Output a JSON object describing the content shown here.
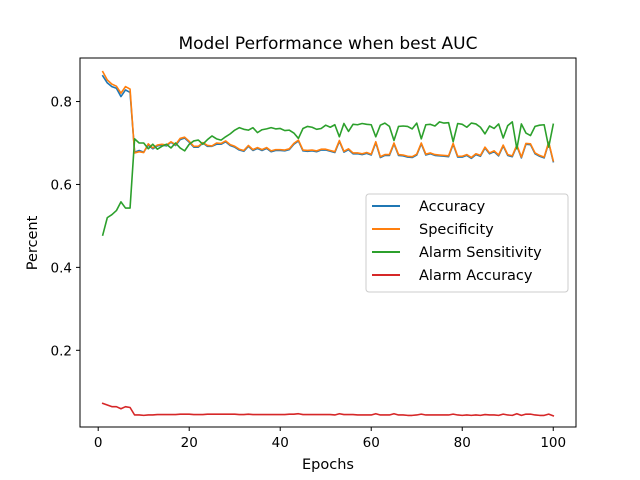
{
  "chart_data": {
    "type": "line",
    "title": "Model Performance when best AUC",
    "xlabel": "Epochs",
    "ylabel": "Percent",
    "xlim": [
      -4,
      105
    ],
    "ylim": [
      0.015,
      0.905
    ],
    "xticks": [
      0,
      20,
      40,
      60,
      80,
      100
    ],
    "yticks": [
      0.2,
      0.4,
      0.6,
      0.8
    ],
    "grid": false,
    "legend_position": "center-right",
    "x": [
      1,
      2,
      3,
      4,
      5,
      6,
      7,
      8,
      9,
      10,
      11,
      12,
      13,
      14,
      15,
      16,
      17,
      18,
      19,
      20,
      21,
      22,
      23,
      24,
      25,
      26,
      27,
      28,
      29,
      30,
      31,
      32,
      33,
      34,
      35,
      36,
      37,
      38,
      39,
      40,
      41,
      42,
      43,
      44,
      45,
      46,
      47,
      48,
      49,
      50,
      51,
      52,
      53,
      54,
      55,
      56,
      57,
      58,
      59,
      60,
      61,
      62,
      63,
      64,
      65,
      66,
      67,
      68,
      69,
      70,
      71,
      72,
      73,
      74,
      75,
      76,
      77,
      78,
      79,
      80,
      81,
      82,
      83,
      84,
      85,
      86,
      87,
      88,
      89,
      90,
      91,
      92,
      93,
      94,
      95,
      96,
      97,
      98,
      99,
      100
    ],
    "series": [
      {
        "name": "Accuracy",
        "color": "#1f77b4",
        "values": [
          0.862,
          0.845,
          0.836,
          0.832,
          0.812,
          0.828,
          0.822,
          0.678,
          0.682,
          0.678,
          0.695,
          0.686,
          0.693,
          0.695,
          0.693,
          0.702,
          0.694,
          0.708,
          0.712,
          0.702,
          0.69,
          0.69,
          0.7,
          0.692,
          0.692,
          0.697,
          0.697,
          0.703,
          0.694,
          0.69,
          0.683,
          0.68,
          0.692,
          0.682,
          0.687,
          0.682,
          0.687,
          0.679,
          0.682,
          0.682,
          0.681,
          0.684,
          0.697,
          0.705,
          0.681,
          0.68,
          0.681,
          0.679,
          0.683,
          0.683,
          0.68,
          0.677,
          0.704,
          0.678,
          0.684,
          0.674,
          0.674,
          0.672,
          0.675,
          0.671,
          0.701,
          0.665,
          0.67,
          0.67,
          0.698,
          0.67,
          0.669,
          0.666,
          0.665,
          0.671,
          0.698,
          0.671,
          0.674,
          0.67,
          0.669,
          0.668,
          0.667,
          0.697,
          0.666,
          0.666,
          0.67,
          0.663,
          0.672,
          0.668,
          0.688,
          0.674,
          0.679,
          0.669,
          0.693,
          0.67,
          0.667,
          0.693,
          0.664,
          0.697,
          0.696,
          0.674,
          0.668,
          0.664,
          0.7,
          0.655
        ]
      },
      {
        "name": "Specificity",
        "color": "#ff7f0e",
        "values": [
          0.872,
          0.852,
          0.842,
          0.837,
          0.82,
          0.836,
          0.83,
          0.676,
          0.679,
          0.677,
          0.698,
          0.688,
          0.695,
          0.697,
          0.695,
          0.703,
          0.696,
          0.711,
          0.714,
          0.704,
          0.692,
          0.692,
          0.701,
          0.694,
          0.693,
          0.7,
          0.699,
          0.705,
          0.696,
          0.692,
          0.685,
          0.682,
          0.694,
          0.684,
          0.689,
          0.684,
          0.689,
          0.681,
          0.684,
          0.684,
          0.683,
          0.686,
          0.699,
          0.707,
          0.683,
          0.682,
          0.683,
          0.681,
          0.685,
          0.685,
          0.682,
          0.679,
          0.706,
          0.68,
          0.686,
          0.676,
          0.676,
          0.674,
          0.677,
          0.673,
          0.703,
          0.667,
          0.672,
          0.672,
          0.7,
          0.672,
          0.671,
          0.668,
          0.667,
          0.673,
          0.7,
          0.673,
          0.676,
          0.672,
          0.671,
          0.67,
          0.669,
          0.699,
          0.668,
          0.668,
          0.672,
          0.665,
          0.674,
          0.67,
          0.69,
          0.676,
          0.681,
          0.671,
          0.695,
          0.672,
          0.669,
          0.695,
          0.666,
          0.699,
          0.698,
          0.676,
          0.67,
          0.666,
          0.702,
          0.657
        ]
      },
      {
        "name": "Alarm Sensitivity",
        "color": "#2ca02c",
        "values": [
          0.478,
          0.52,
          0.527,
          0.537,
          0.558,
          0.543,
          0.543,
          0.71,
          0.7,
          0.7,
          0.686,
          0.697,
          0.685,
          0.692,
          0.697,
          0.688,
          0.7,
          0.688,
          0.681,
          0.697,
          0.705,
          0.707,
          0.697,
          0.708,
          0.717,
          0.71,
          0.707,
          0.715,
          0.722,
          0.731,
          0.737,
          0.733,
          0.731,
          0.737,
          0.725,
          0.732,
          0.734,
          0.737,
          0.734,
          0.735,
          0.73,
          0.731,
          0.724,
          0.711,
          0.735,
          0.74,
          0.738,
          0.733,
          0.735,
          0.743,
          0.738,
          0.744,
          0.715,
          0.747,
          0.728,
          0.745,
          0.744,
          0.747,
          0.745,
          0.744,
          0.715,
          0.743,
          0.748,
          0.74,
          0.706,
          0.74,
          0.741,
          0.74,
          0.734,
          0.748,
          0.71,
          0.744,
          0.745,
          0.741,
          0.751,
          0.748,
          0.749,
          0.703,
          0.747,
          0.745,
          0.738,
          0.748,
          0.746,
          0.738,
          0.722,
          0.741,
          0.735,
          0.746,
          0.712,
          0.742,
          0.751,
          0.686,
          0.746,
          0.724,
          0.718,
          0.74,
          0.743,
          0.744,
          0.69,
          0.745
        ]
      },
      {
        "name": "Alarm Accuracy",
        "color": "#d62728",
        "values": [
          0.072,
          0.068,
          0.064,
          0.064,
          0.059,
          0.064,
          0.062,
          0.044,
          0.044,
          0.043,
          0.044,
          0.044,
          0.045,
          0.045,
          0.045,
          0.045,
          0.045,
          0.046,
          0.046,
          0.046,
          0.045,
          0.045,
          0.045,
          0.046,
          0.046,
          0.046,
          0.046,
          0.046,
          0.046,
          0.046,
          0.045,
          0.045,
          0.046,
          0.045,
          0.045,
          0.045,
          0.045,
          0.045,
          0.045,
          0.045,
          0.045,
          0.046,
          0.046,
          0.047,
          0.045,
          0.045,
          0.045,
          0.045,
          0.045,
          0.045,
          0.045,
          0.044,
          0.047,
          0.045,
          0.045,
          0.045,
          0.044,
          0.044,
          0.044,
          0.044,
          0.047,
          0.044,
          0.044,
          0.044,
          0.047,
          0.044,
          0.044,
          0.043,
          0.043,
          0.044,
          0.046,
          0.044,
          0.044,
          0.044,
          0.044,
          0.044,
          0.044,
          0.046,
          0.044,
          0.043,
          0.044,
          0.043,
          0.044,
          0.043,
          0.045,
          0.044,
          0.044,
          0.043,
          0.046,
          0.044,
          0.043,
          0.047,
          0.043,
          0.046,
          0.046,
          0.044,
          0.043,
          0.043,
          0.046,
          0.042
        ]
      }
    ]
  }
}
